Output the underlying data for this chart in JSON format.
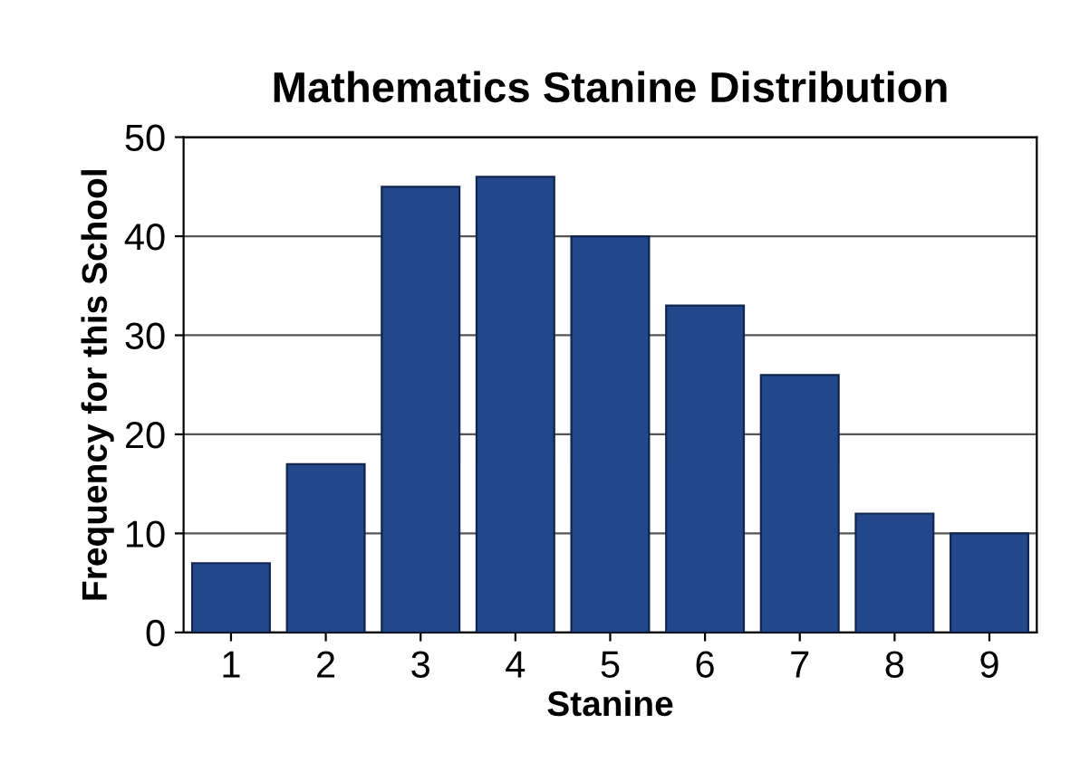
{
  "chart_data": {
    "type": "bar",
    "title": "Mathematics Stanine Distribution",
    "xlabel": "Stanine",
    "ylabel": "Frequency for this School",
    "categories": [
      "1",
      "2",
      "3",
      "4",
      "5",
      "6",
      "7",
      "8",
      "9"
    ],
    "values": [
      7,
      17,
      45,
      46,
      40,
      33,
      26,
      12,
      10
    ],
    "color": "#22478a",
    "ylim": [
      0,
      50
    ],
    "yticks": [
      0,
      10,
      20,
      30,
      40,
      50
    ],
    "grid": "y"
  }
}
